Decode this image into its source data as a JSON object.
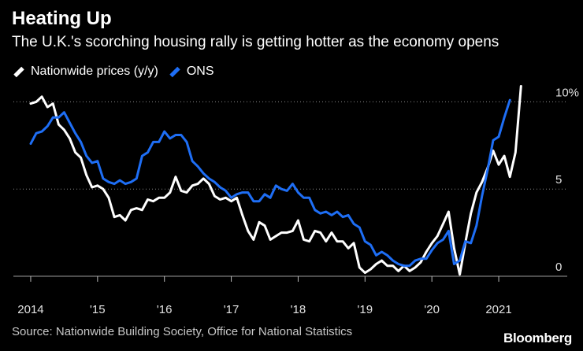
{
  "header": {
    "title": "Heating Up",
    "subtitle": "The U.K.'s scorching housing rally is getting hotter as the economy opens"
  },
  "footer": {
    "source": "Source: Nationwide Building Society, Office for National Statistics",
    "brand": "Bloomberg"
  },
  "chart_data": {
    "type": "line",
    "title": "Heating Up",
    "subtitle": "The U.K.'s scorching housing rally is getting hotter as the economy opens",
    "xlabel": "",
    "ylabel": "",
    "xlim": [
      2013.9,
      2021.6
    ],
    "ylim": [
      0,
      10.5
    ],
    "y_ticks": [
      0,
      5,
      10
    ],
    "y_tick_labels": [
      "0",
      "5",
      "10%"
    ],
    "x_ticks": [
      2014,
      2015,
      2016,
      2017,
      2018,
      2019,
      2020,
      2021
    ],
    "x_tick_labels": [
      "2014",
      "'15",
      "'16",
      "'17",
      "'18",
      "'19",
      "'20",
      "2021"
    ],
    "grid": "horizontal dotted at 5 and 10",
    "legend_position": "top-left",
    "series": [
      {
        "name": "Nationwide prices (y/y)",
        "color": "#ffffff",
        "x": [
          2014.0,
          2014.083,
          2014.167,
          2014.25,
          2014.333,
          2014.417,
          2014.5,
          2014.583,
          2014.667,
          2014.75,
          2014.833,
          2014.917,
          2015.0,
          2015.083,
          2015.167,
          2015.25,
          2015.333,
          2015.417,
          2015.5,
          2015.583,
          2015.667,
          2015.75,
          2015.833,
          2015.917,
          2016.0,
          2016.083,
          2016.167,
          2016.25,
          2016.333,
          2016.417,
          2016.5,
          2016.583,
          2016.667,
          2016.75,
          2016.833,
          2016.917,
          2017.0,
          2017.083,
          2017.167,
          2017.25,
          2017.333,
          2017.417,
          2017.5,
          2017.583,
          2017.667,
          2017.75,
          2017.833,
          2017.917,
          2018.0,
          2018.083,
          2018.167,
          2018.25,
          2018.333,
          2018.417,
          2018.5,
          2018.583,
          2018.667,
          2018.75,
          2018.833,
          2018.917,
          2019.0,
          2019.083,
          2019.167,
          2019.25,
          2019.333,
          2019.417,
          2019.5,
          2019.583,
          2019.667,
          2019.75,
          2019.833,
          2019.917,
          2020.0,
          2020.083,
          2020.167,
          2020.25,
          2020.333,
          2020.417,
          2020.5,
          2020.583,
          2020.667,
          2020.75,
          2020.833,
          2020.917,
          2021.0,
          2021.083,
          2021.167,
          2021.25,
          2021.333
        ],
        "values": [
          9.9,
          10.0,
          10.3,
          9.7,
          9.9,
          8.7,
          8.4,
          7.9,
          7.1,
          6.8,
          5.8,
          5.1,
          5.2,
          5.0,
          4.5,
          3.4,
          3.5,
          3.2,
          3.8,
          3.9,
          3.8,
          4.4,
          4.3,
          4.5,
          4.5,
          4.8,
          5.7,
          4.9,
          4.8,
          5.2,
          5.3,
          5.6,
          5.3,
          4.6,
          4.4,
          4.5,
          4.3,
          4.5,
          3.5,
          2.6,
          2.1,
          3.1,
          2.9,
          2.1,
          2.3,
          2.5,
          2.5,
          2.6,
          3.2,
          2.1,
          2.0,
          2.6,
          2.5,
          2.0,
          2.5,
          2.0,
          2.0,
          1.6,
          1.9,
          0.5,
          0.2,
          0.4,
          0.7,
          0.9,
          0.6,
          0.6,
          0.3,
          0.6,
          0.3,
          0.5,
          0.8,
          1.4,
          1.9,
          2.3,
          3.0,
          3.7,
          1.6,
          0.1,
          1.9,
          3.6,
          4.8,
          5.4,
          6.2,
          7.2,
          6.4,
          6.9,
          5.7,
          7.1,
          10.9
        ]
      },
      {
        "name": "ONS",
        "color": "#1e6ef5",
        "x": [
          2014.0,
          2014.083,
          2014.167,
          2014.25,
          2014.333,
          2014.417,
          2014.5,
          2014.583,
          2014.667,
          2014.75,
          2014.833,
          2014.917,
          2015.0,
          2015.083,
          2015.167,
          2015.25,
          2015.333,
          2015.417,
          2015.5,
          2015.583,
          2015.667,
          2015.75,
          2015.833,
          2015.917,
          2016.0,
          2016.083,
          2016.167,
          2016.25,
          2016.333,
          2016.417,
          2016.5,
          2016.583,
          2016.667,
          2016.75,
          2016.833,
          2016.917,
          2017.0,
          2017.083,
          2017.167,
          2017.25,
          2017.333,
          2017.417,
          2017.5,
          2017.583,
          2017.667,
          2017.75,
          2017.833,
          2017.917,
          2018.0,
          2018.083,
          2018.167,
          2018.25,
          2018.333,
          2018.417,
          2018.5,
          2018.583,
          2018.667,
          2018.75,
          2018.833,
          2018.917,
          2019.0,
          2019.083,
          2019.167,
          2019.25,
          2019.333,
          2019.417,
          2019.5,
          2019.583,
          2019.667,
          2019.75,
          2019.833,
          2019.917,
          2020.0,
          2020.083,
          2020.167,
          2020.25,
          2020.333,
          2020.417,
          2020.5,
          2020.583,
          2020.667,
          2020.75,
          2020.833,
          2020.917,
          2021.0,
          2021.083,
          2021.167
        ],
        "values": [
          7.6,
          8.2,
          8.3,
          8.6,
          9.1,
          9.1,
          9.4,
          8.8,
          8.2,
          7.7,
          6.9,
          6.5,
          6.6,
          5.6,
          5.4,
          5.3,
          5.5,
          5.3,
          5.4,
          5.6,
          6.9,
          7.1,
          7.7,
          7.7,
          8.3,
          7.9,
          8.1,
          8.1,
          7.7,
          6.6,
          6.3,
          5.9,
          5.6,
          5.4,
          5.1,
          4.9,
          4.5,
          4.7,
          4.8,
          4.8,
          4.3,
          4.3,
          4.7,
          4.5,
          5.2,
          5.0,
          4.9,
          5.3,
          4.8,
          4.5,
          4.5,
          3.8,
          3.6,
          3.7,
          3.5,
          3.7,
          3.4,
          3.5,
          3.0,
          2.8,
          2.0,
          1.8,
          1.2,
          1.4,
          1.2,
          0.9,
          0.7,
          0.6,
          0.6,
          0.9,
          1.0,
          1.0,
          1.5,
          1.9,
          2.1,
          2.6,
          0.7,
          0.9,
          2.0,
          1.9,
          2.9,
          4.6,
          6.1,
          7.8,
          8.0,
          9.1,
          10.1
        ]
      }
    ]
  }
}
